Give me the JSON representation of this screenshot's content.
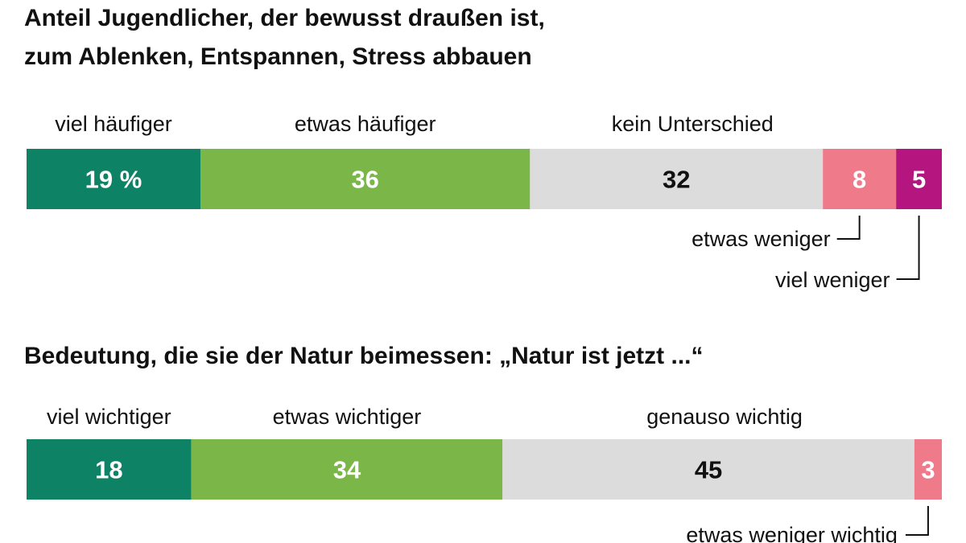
{
  "chart_data": [
    {
      "type": "bar",
      "orientation": "horizontal-stacked",
      "title_lines": [
        "Anteil Jugendlicher, der bewusst draußen ist,",
        "zum Ablenken, Entspannen, Stress abbauen"
      ],
      "unit": "%",
      "categories": [
        "viel häufiger",
        "etwas häufiger",
        "kein Unterschied",
        "etwas weniger",
        "viel weniger"
      ],
      "values": [
        19,
        36,
        32,
        8,
        5
      ],
      "value_labels": [
        "19 %",
        "36",
        "32",
        "8",
        "5"
      ],
      "colors": [
        "#0e8265",
        "#7ab648",
        "#dcdcdc",
        "#ef7a8a",
        "#b5157f"
      ],
      "value_text_colors": [
        "#ffffff",
        "#ffffff",
        "#111111",
        "#ffffff",
        "#ffffff"
      ],
      "label_position": [
        "top",
        "top",
        "top",
        "bottom",
        "bottom"
      ],
      "xlim": [
        0,
        100
      ]
    },
    {
      "type": "bar",
      "orientation": "horizontal-stacked",
      "title_lines": [
        "Bedeutung, die sie der Natur beimessen: „Natur ist jetzt ...“"
      ],
      "unit": "%",
      "categories": [
        "viel wichtiger",
        "etwas wichtiger",
        "genauso wichtig",
        "etwas weniger wichtig"
      ],
      "values": [
        18,
        34,
        45,
        3
      ],
      "value_labels": [
        "18",
        "34",
        "45",
        "3"
      ],
      "colors": [
        "#0e8265",
        "#7ab648",
        "#dcdcdc",
        "#ef7a8a"
      ],
      "value_text_colors": [
        "#ffffff",
        "#ffffff",
        "#111111",
        "#ffffff"
      ],
      "label_position": [
        "top",
        "top",
        "top",
        "bottom"
      ],
      "xlim": [
        0,
        100
      ]
    }
  ]
}
